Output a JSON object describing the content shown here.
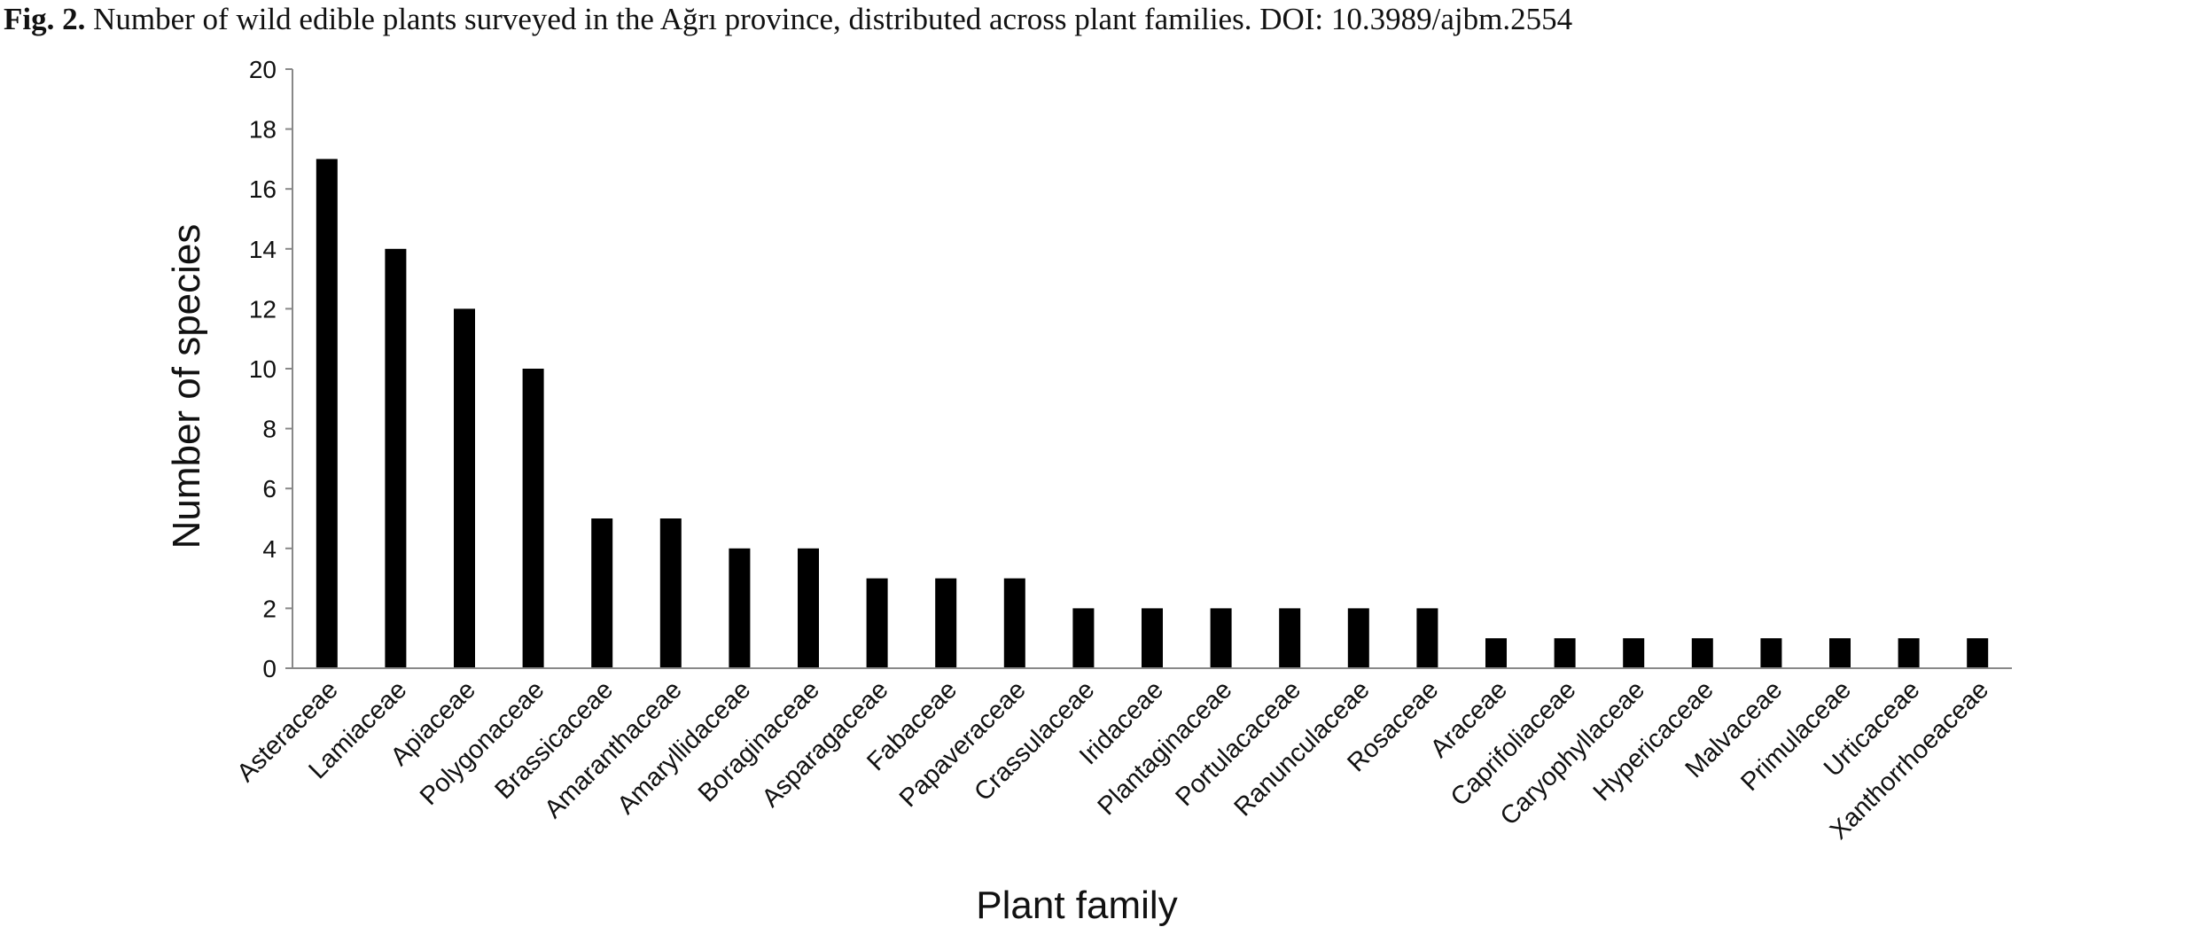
{
  "caption": {
    "label": "Fig. 2.",
    "text": " Number of wild edible plants surveyed in the Ağrı province, distributed across plant families. DOI: 10.3989/ajbm.2554"
  },
  "chart_data": {
    "type": "bar",
    "categories": [
      "Asteraceae",
      "Lamiaceae",
      "Apiaceae",
      "Polygonaceae",
      "Brassicaceae",
      "Amaranthaceae",
      "Amaryllidaceae",
      "Boraginaceae",
      "Asparagaceae",
      "Fabaceae",
      "Papaveraceae",
      "Crassulaceae",
      "Iridaceae",
      "Plantaginaceae",
      "Portulacaceae",
      "Ranunculaceae",
      "Rosaceae",
      "Araceae",
      "Caprifoliaceae",
      "Caryophyllaceae",
      "Hypericaceae",
      "Malvaceae",
      "Primulaceae",
      "Urticaceae",
      "Xanthorrhoeaceae"
    ],
    "values": [
      17,
      14,
      12,
      10,
      5,
      5,
      4,
      4,
      3,
      3,
      3,
      2,
      2,
      2,
      2,
      2,
      2,
      1,
      1,
      1,
      1,
      1,
      1,
      1,
      1
    ],
    "xlabel": "Plant family",
    "ylabel": "Number of species",
    "ylim": [
      0,
      20
    ],
    "yticks": [
      0,
      2,
      4,
      6,
      8,
      10,
      12,
      14,
      16,
      18,
      20
    ],
    "grid": false,
    "legend": "none",
    "bar_color": "#000000"
  }
}
